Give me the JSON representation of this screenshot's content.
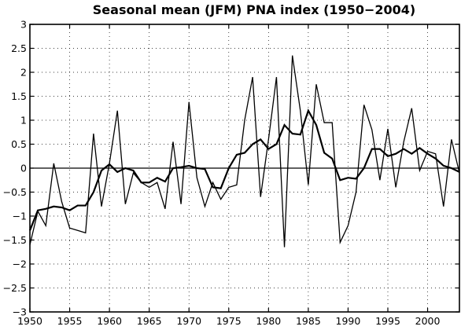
{
  "chart_data": {
    "type": "line",
    "title": "Seasonal mean (JFM) PNA index (1950−2004)",
    "xlabel": "",
    "ylabel": "",
    "xlim": [
      1950,
      2004
    ],
    "ylim": [
      -3,
      3
    ],
    "x_ticks": [
      1950,
      1955,
      1960,
      1965,
      1970,
      1975,
      1980,
      1985,
      1990,
      1995,
      2000
    ],
    "x_tick_labels": [
      "1950",
      "1955",
      "1960",
      "1965",
      "1970",
      "1975",
      "1980",
      "1985",
      "1990",
      "1995",
      "2000"
    ],
    "y_ticks": [
      -3,
      -2.5,
      -2,
      -1.5,
      -1,
      -0.5,
      0,
      0.5,
      1,
      1.5,
      2,
      2.5,
      3
    ],
    "y_tick_labels": [
      "−3",
      "−2.5",
      "−2",
      "−1.5",
      "−1",
      "−0.5",
      "0",
      "0.5",
      "1",
      "1.5",
      "2",
      "2.5",
      "3"
    ],
    "grid": true,
    "zero_line": true,
    "x": [
      1950,
      1951,
      1952,
      1953,
      1954,
      1955,
      1956,
      1957,
      1958,
      1959,
      1960,
      1961,
      1962,
      1963,
      1964,
      1965,
      1966,
      1967,
      1968,
      1969,
      1970,
      1971,
      1972,
      1973,
      1974,
      1975,
      1976,
      1977,
      1978,
      1979,
      1980,
      1981,
      1982,
      1983,
      1984,
      1985,
      1986,
      1987,
      1988,
      1989,
      1990,
      1991,
      1992,
      1993,
      1994,
      1995,
      1996,
      1997,
      1998,
      1999,
      2000,
      2001,
      2002,
      2003,
      2004
    ],
    "series": [
      {
        "values": [
          -1.6,
          -0.9,
          -1.2,
          0.1,
          -0.7,
          -1.25,
          -1.3,
          -1.35,
          0.72,
          -0.8,
          0.1,
          1.2,
          -0.75,
          -0.1,
          -0.3,
          -0.4,
          -0.3,
          -0.85,
          0.55,
          -0.75,
          1.38,
          -0.2,
          -0.8,
          -0.3,
          -0.65,
          -0.4,
          -0.35,
          1.0,
          1.9,
          -0.6,
          0.6,
          1.9,
          -1.65,
          2.35,
          1.2,
          -0.35,
          1.75,
          0.95,
          0.95,
          -1.55,
          -1.2,
          -0.5,
          1.32,
          0.8,
          -0.25,
          0.82,
          -0.4,
          0.55,
          1.25,
          -0.05,
          0.35,
          0.3,
          -0.8,
          0.6,
          -0.1
        ],
        "color": "#000000",
        "style": "thin"
      },
      {
        "values": [
          -1.3,
          -0.88,
          -0.85,
          -0.8,
          -0.82,
          -0.88,
          -0.78,
          -0.78,
          -0.5,
          -0.05,
          0.08,
          -0.08,
          0.0,
          -0.05,
          -0.3,
          -0.3,
          -0.2,
          -0.28,
          0.0,
          0.02,
          0.05,
          0.0,
          -0.02,
          -0.4,
          -0.42,
          0.0,
          0.28,
          0.32,
          0.5,
          0.6,
          0.4,
          0.5,
          0.9,
          0.72,
          0.7,
          1.2,
          0.9,
          0.32,
          0.2,
          -0.25,
          -0.2,
          -0.22,
          0.0,
          0.4,
          0.4,
          0.25,
          0.3,
          0.4,
          0.3,
          0.42,
          0.3,
          0.2,
          0.05,
          0.0,
          -0.08
        ],
        "color": "#000000",
        "style": "thick"
      }
    ]
  }
}
